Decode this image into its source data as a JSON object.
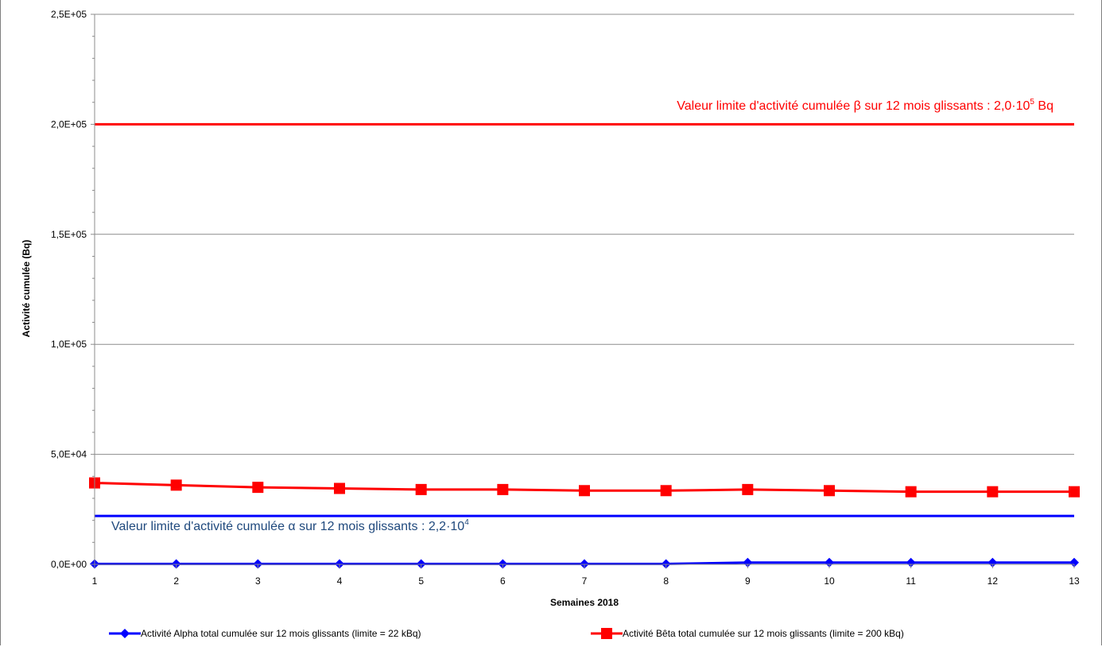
{
  "chart_data": {
    "type": "line",
    "title": "",
    "xlabel": "Semaines 2018",
    "ylabel": "Activité cumulée (Bq)",
    "x": [
      1,
      2,
      3,
      4,
      5,
      6,
      7,
      8,
      9,
      10,
      11,
      12,
      13
    ],
    "ylim": [
      0,
      250000
    ],
    "yticks": [
      0,
      50000,
      100000,
      150000,
      200000,
      250000
    ],
    "ytick_labels": [
      "0,0E+00",
      "5,0E+04",
      "1,0E+05",
      "1,5E+05",
      "2,0E+05",
      "2,5E+05"
    ],
    "grid": true,
    "legend_position": "bottom",
    "series": [
      {
        "name": "Activité Alpha total cumulée sur 12 mois glissants (limite = 22 kBq)",
        "color": "#0000ff",
        "marker": "diamond",
        "values": [
          200,
          200,
          200,
          200,
          200,
          200,
          200,
          200,
          800,
          800,
          800,
          800,
          800
        ]
      },
      {
        "name": "Activité Bêta total cumulée sur 12 mois glissants (limite = 200 kBq)",
        "color": "#ff0000",
        "marker": "square",
        "values": [
          37000,
          36000,
          35000,
          34500,
          34000,
          34000,
          33500,
          33500,
          34000,
          33500,
          33000,
          33000,
          33000
        ]
      }
    ],
    "limit_lines": [
      {
        "value": 200000,
        "color": "#ff0000",
        "label_pre": "Valeur limite d'activité cumulée β sur 12 mois  glissants : 2,0·10",
        "label_sup": "5",
        "label_post": " Bq",
        "label_color": "#ff0000"
      },
      {
        "value": 22000,
        "color": "#0000ff",
        "label_pre": "Valeur limite d'activité cumulée α sur 12 mois  glissants : 2,2·10",
        "label_sup": "4",
        "label_post": "",
        "label_color": "#1f497d"
      }
    ]
  }
}
